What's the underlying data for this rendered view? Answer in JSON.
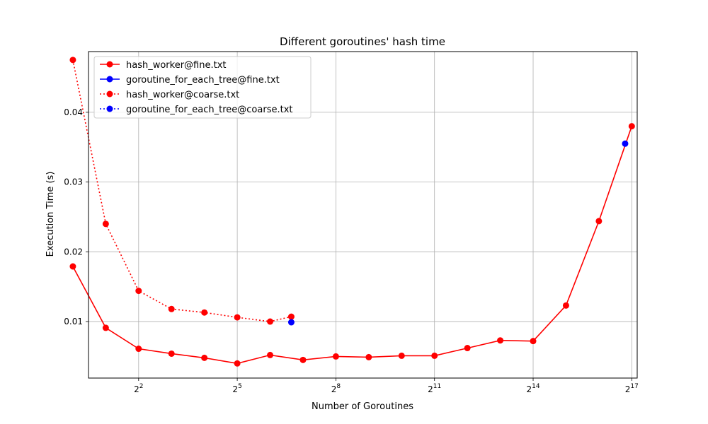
{
  "chart_data": {
    "type": "line",
    "title": "Different goroutines' hash time",
    "xlabel": "Number of Goroutines",
    "ylabel": "Execution Time (s)",
    "x_scale": "log2",
    "xlim": [
      1.39,
      147000
    ],
    "ylim": [
      0.0019,
      0.0487
    ],
    "x_ticks": [
      {
        "value": 4,
        "base": "2",
        "exp": "2"
      },
      {
        "value": 32,
        "base": "2",
        "exp": "5"
      },
      {
        "value": 256,
        "base": "2",
        "exp": "8"
      },
      {
        "value": 2048,
        "base": "2",
        "exp": "11"
      },
      {
        "value": 16384,
        "base": "2",
        "exp": "14"
      },
      {
        "value": 131072,
        "base": "2",
        "exp": "17"
      }
    ],
    "y_ticks": [
      {
        "value": 0.01,
        "label": "0.01"
      },
      {
        "value": 0.02,
        "label": "0.02"
      },
      {
        "value": 0.03,
        "label": "0.03"
      },
      {
        "value": 0.04,
        "label": "0.04"
      }
    ],
    "grid": true,
    "legend_position": "top-left",
    "series": [
      {
        "name": "hash_worker@fine.txt",
        "color": "#ff0000",
        "linestyle": "solid",
        "x": [
          1,
          2,
          4,
          8,
          16,
          32,
          64,
          128,
          256,
          512,
          1024,
          2048,
          4096,
          8192,
          16384,
          32768,
          65536,
          131072
        ],
        "y": [
          0.0179,
          0.0091,
          0.0061,
          0.0054,
          0.0048,
          0.004,
          0.0052,
          0.0045,
          0.005,
          0.0049,
          0.0051,
          0.0051,
          0.0062,
          0.0073,
          0.0072,
          0.0123,
          0.0244,
          0.038
        ]
      },
      {
        "name": "goroutine_for_each_tree@fine.txt",
        "color": "#0000ff",
        "linestyle": "solid",
        "x": [
          114000
        ],
        "y": [
          0.0355
        ]
      },
      {
        "name": "hash_worker@coarse.txt",
        "color": "#ff0000",
        "linestyle": "dotted",
        "x": [
          1,
          2,
          4,
          8,
          16,
          32,
          64,
          100
        ],
        "y": [
          0.0475,
          0.024,
          0.0144,
          0.0118,
          0.0113,
          0.0106,
          0.01,
          0.0107
        ]
      },
      {
        "name": "goroutine_for_each_tree@coarse.txt",
        "color": "#0000ff",
        "linestyle": "dotted",
        "x": [
          100
        ],
        "y": [
          0.0099
        ]
      }
    ]
  }
}
